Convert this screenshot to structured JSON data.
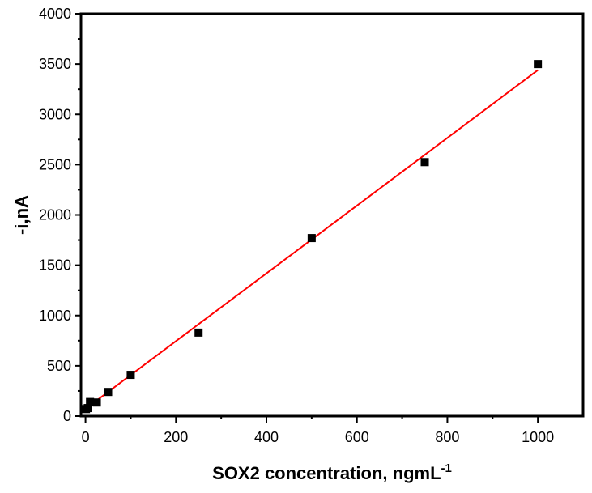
{
  "chart_data": {
    "type": "scatter",
    "title": "",
    "xlabel": "SOX2 concentration, ngmL",
    "xlabel_superscript": "-1",
    "ylabel": "-i,nA",
    "xlim": [
      -10,
      1100
    ],
    "ylim": [
      0,
      4000
    ],
    "x_ticks": [
      0,
      200,
      400,
      600,
      800,
      1000
    ],
    "x_tick_labels": [
      "0",
      "200",
      "400",
      "600",
      "800",
      "1000"
    ],
    "y_ticks": [
      0,
      500,
      1000,
      1500,
      2000,
      2500,
      3000,
      3500,
      4000
    ],
    "y_tick_labels": [
      "0",
      "500",
      "1000",
      "1500",
      "2000",
      "2500",
      "3000",
      "3500",
      "4000"
    ],
    "grid": false,
    "series": [
      {
        "marker": "square",
        "color": "#000000",
        "x": [
          1,
          5,
          10,
          25,
          50,
          100,
          250,
          500,
          750,
          1000
        ],
        "y": [
          70,
          80,
          140,
          135,
          240,
          410,
          830,
          1770,
          2525,
          3500
        ]
      }
    ],
    "fit_line": {
      "color": "#ff0000",
      "x": [
        1,
        1000
      ],
      "y": [
        75,
        3440
      ]
    }
  }
}
